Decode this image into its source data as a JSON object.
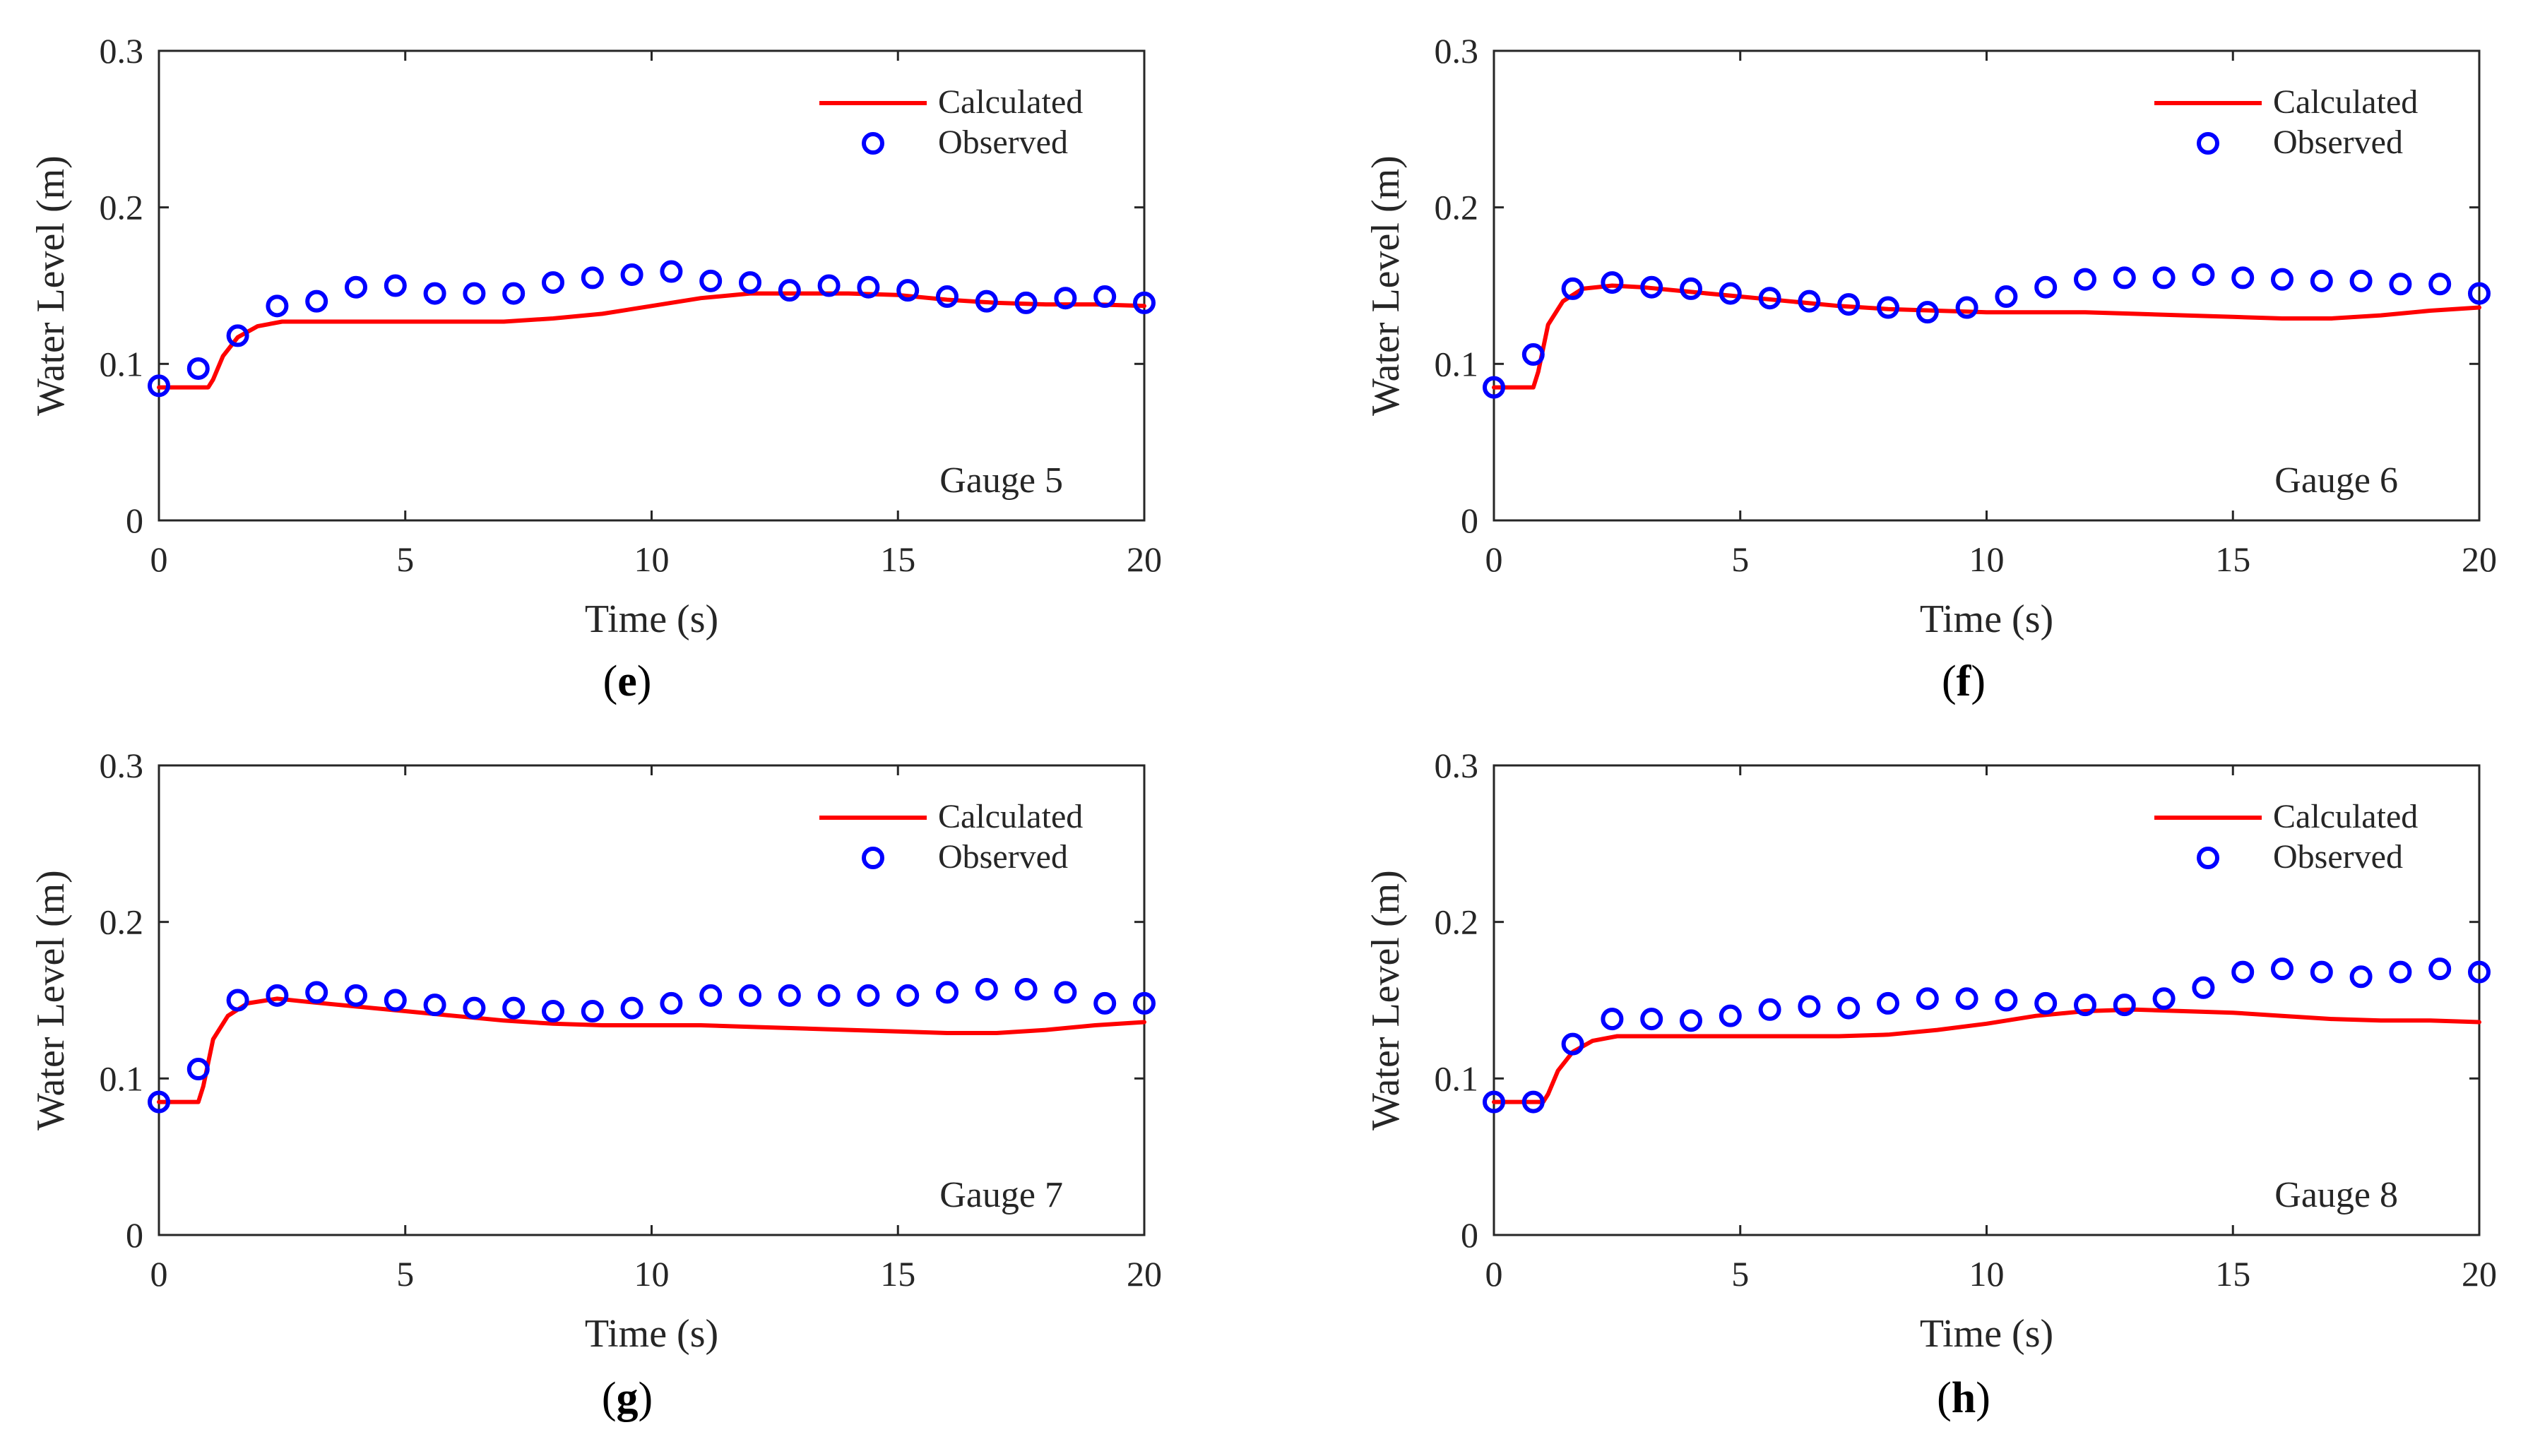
{
  "colors": {
    "calculated": "#ff0000",
    "observed": "#0000ff",
    "axis": "#262626"
  },
  "chart_data": [
    {
      "type": "line",
      "caption_letter": "e",
      "caption_open": "(",
      "caption_close": ")",
      "annotation": "Gauge 5",
      "xlabel": "Time (s)",
      "ylabel": "Water Level (m)",
      "xlim": [
        0,
        20
      ],
      "ylim": [
        0,
        0.3
      ],
      "xticks": [
        0,
        5,
        10,
        15,
        20
      ],
      "xtick_labels": [
        "0",
        "5",
        "10",
        "15",
        "20"
      ],
      "yticks": [
        0,
        0.1,
        0.2,
        0.3
      ],
      "ytick_labels": [
        "0",
        "0.1",
        "0.2",
        "0.3"
      ],
      "grid": false,
      "legend": "top-right",
      "series": [
        {
          "name": "Calculated",
          "style": "line",
          "x": [
            0,
            1,
            1.1,
            1.3,
            1.6,
            2,
            2.5,
            3,
            4,
            5,
            6,
            7,
            8,
            9,
            10,
            11,
            12,
            13,
            14,
            15,
            16,
            17,
            18,
            19,
            20
          ],
          "y": [
            0.085,
            0.085,
            0.09,
            0.105,
            0.117,
            0.124,
            0.127,
            0.127,
            0.127,
            0.127,
            0.127,
            0.127,
            0.129,
            0.132,
            0.137,
            0.142,
            0.145,
            0.145,
            0.145,
            0.144,
            0.141,
            0.139,
            0.138,
            0.138,
            0.137
          ]
        },
        {
          "name": "Observed",
          "style": "markers",
          "x": [
            0,
            0.8,
            1.6,
            2.4,
            3.2,
            4,
            4.8,
            5.6,
            6.4,
            7.2,
            8,
            8.8,
            9.6,
            10.4,
            11.2,
            12,
            12.8,
            13.6,
            14.4,
            15.2,
            16,
            16.8,
            17.6,
            18.4,
            19.2,
            20
          ],
          "y": [
            0.086,
            0.097,
            0.118,
            0.137,
            0.14,
            0.149,
            0.15,
            0.145,
            0.145,
            0.145,
            0.152,
            0.155,
            0.157,
            0.159,
            0.153,
            0.152,
            0.147,
            0.15,
            0.149,
            0.147,
            0.143,
            0.14,
            0.139,
            0.142,
            0.143,
            0.139
          ]
        }
      ]
    },
    {
      "type": "line",
      "caption_letter": "f",
      "caption_open": "(",
      "caption_close": ")",
      "annotation": "Gauge 6",
      "xlabel": "Time (s)",
      "ylabel": "Water Level (m)",
      "xlim": [
        0,
        20
      ],
      "ylim": [
        0,
        0.3
      ],
      "xticks": [
        0,
        5,
        10,
        15,
        20
      ],
      "xtick_labels": [
        "0",
        "5",
        "10",
        "15",
        "20"
      ],
      "yticks": [
        0,
        0.1,
        0.2,
        0.3
      ],
      "ytick_labels": [
        "0",
        "0.1",
        "0.2",
        "0.3"
      ],
      "grid": false,
      "legend": "top-right",
      "series": [
        {
          "name": "Calculated",
          "style": "line",
          "x": [
            0,
            0.8,
            0.9,
            1.1,
            1.4,
            1.8,
            2.4,
            3,
            4,
            5,
            6,
            7,
            8,
            9,
            10,
            11,
            12,
            13,
            14,
            15,
            16,
            17,
            18,
            19,
            20
          ],
          "y": [
            0.085,
            0.085,
            0.095,
            0.125,
            0.14,
            0.148,
            0.15,
            0.149,
            0.146,
            0.143,
            0.14,
            0.137,
            0.135,
            0.134,
            0.133,
            0.133,
            0.133,
            0.132,
            0.131,
            0.13,
            0.129,
            0.129,
            0.131,
            0.134,
            0.136
          ]
        },
        {
          "name": "Observed",
          "style": "markers",
          "x": [
            0,
            0.8,
            1.6,
            2.4,
            3.2,
            4,
            4.8,
            5.6,
            6.4,
            7.2,
            8,
            8.8,
            9.6,
            10.4,
            11.2,
            12,
            12.8,
            13.6,
            14.4,
            15.2,
            16,
            16.8,
            17.6,
            18.4,
            19.2,
            20
          ],
          "y": [
            0.085,
            0.106,
            0.148,
            0.152,
            0.149,
            0.148,
            0.145,
            0.142,
            0.14,
            0.138,
            0.136,
            0.133,
            0.136,
            0.143,
            0.149,
            0.154,
            0.155,
            0.155,
            0.157,
            0.155,
            0.154,
            0.153,
            0.153,
            0.151,
            0.151,
            0.145
          ]
        }
      ]
    },
    {
      "type": "line",
      "caption_letter": "g",
      "caption_open": "(",
      "caption_close": ")",
      "annotation": "Gauge 7",
      "xlabel": "Time (s)",
      "ylabel": "Water Level (m)",
      "xlim": [
        0,
        20
      ],
      "ylim": [
        0,
        0.3
      ],
      "xticks": [
        0,
        5,
        10,
        15,
        20
      ],
      "xtick_labels": [
        "0",
        "5",
        "10",
        "15",
        "20"
      ],
      "yticks": [
        0,
        0.1,
        0.2,
        0.3
      ],
      "ytick_labels": [
        "0",
        "0.1",
        "0.2",
        "0.3"
      ],
      "grid": false,
      "legend": "top-right",
      "series": [
        {
          "name": "Calculated",
          "style": "line",
          "x": [
            0,
            0.8,
            0.9,
            1.1,
            1.4,
            1.8,
            2.4,
            3,
            4,
            5,
            6,
            7,
            8,
            9,
            10,
            11,
            12,
            13,
            14,
            15,
            16,
            17,
            18,
            19,
            20
          ],
          "y": [
            0.085,
            0.085,
            0.095,
            0.125,
            0.14,
            0.148,
            0.151,
            0.149,
            0.146,
            0.143,
            0.14,
            0.137,
            0.135,
            0.134,
            0.134,
            0.134,
            0.133,
            0.132,
            0.131,
            0.13,
            0.129,
            0.129,
            0.131,
            0.134,
            0.136
          ]
        },
        {
          "name": "Observed",
          "style": "markers",
          "x": [
            0,
            0.8,
            1.6,
            2.4,
            3.2,
            4,
            4.8,
            5.6,
            6.4,
            7.2,
            8,
            8.8,
            9.6,
            10.4,
            11.2,
            12,
            12.8,
            13.6,
            14.4,
            15.2,
            16,
            16.8,
            17.6,
            18.4,
            19.2,
            20
          ],
          "y": [
            0.085,
            0.106,
            0.15,
            0.153,
            0.155,
            0.153,
            0.15,
            0.147,
            0.145,
            0.145,
            0.143,
            0.143,
            0.145,
            0.148,
            0.153,
            0.153,
            0.153,
            0.153,
            0.153,
            0.153,
            0.155,
            0.157,
            0.157,
            0.155,
            0.148,
            0.148
          ]
        }
      ]
    },
    {
      "type": "line",
      "caption_letter": "h",
      "caption_open": "(",
      "caption_close": ")",
      "annotation": "Gauge 8",
      "xlabel": "Time (s)",
      "ylabel": "Water Level (m)",
      "xlim": [
        0,
        20
      ],
      "ylim": [
        0,
        0.3
      ],
      "xticks": [
        0,
        5,
        10,
        15,
        20
      ],
      "xtick_labels": [
        "0",
        "5",
        "10",
        "15",
        "20"
      ],
      "yticks": [
        0,
        0.1,
        0.2,
        0.3
      ],
      "ytick_labels": [
        "0",
        "0.1",
        "0.2",
        "0.3"
      ],
      "grid": false,
      "legend": "top-right",
      "series": [
        {
          "name": "Calculated",
          "style": "line",
          "x": [
            0,
            1,
            1.1,
            1.3,
            1.6,
            2,
            2.5,
            3,
            4,
            5,
            6,
            7,
            8,
            9,
            10,
            11,
            12,
            13,
            14,
            15,
            16,
            17,
            18,
            19,
            20
          ],
          "y": [
            0.085,
            0.085,
            0.09,
            0.105,
            0.117,
            0.124,
            0.127,
            0.127,
            0.127,
            0.127,
            0.127,
            0.127,
            0.128,
            0.131,
            0.135,
            0.14,
            0.143,
            0.144,
            0.143,
            0.142,
            0.14,
            0.138,
            0.137,
            0.137,
            0.136
          ]
        },
        {
          "name": "Observed",
          "style": "markers",
          "x": [
            0,
            0.8,
            1.6,
            2.4,
            3.2,
            4,
            4.8,
            5.6,
            6.4,
            7.2,
            8,
            8.8,
            9.6,
            10.4,
            11.2,
            12,
            12.8,
            13.6,
            14.4,
            15.2,
            16,
            16.8,
            17.6,
            18.4,
            19.2,
            20
          ],
          "y": [
            0.085,
            0.085,
            0.122,
            0.138,
            0.138,
            0.137,
            0.14,
            0.144,
            0.146,
            0.145,
            0.148,
            0.151,
            0.151,
            0.15,
            0.148,
            0.147,
            0.147,
            0.151,
            0.158,
            0.168,
            0.17,
            0.168,
            0.165,
            0.168,
            0.17,
            0.168
          ]
        }
      ]
    }
  ]
}
